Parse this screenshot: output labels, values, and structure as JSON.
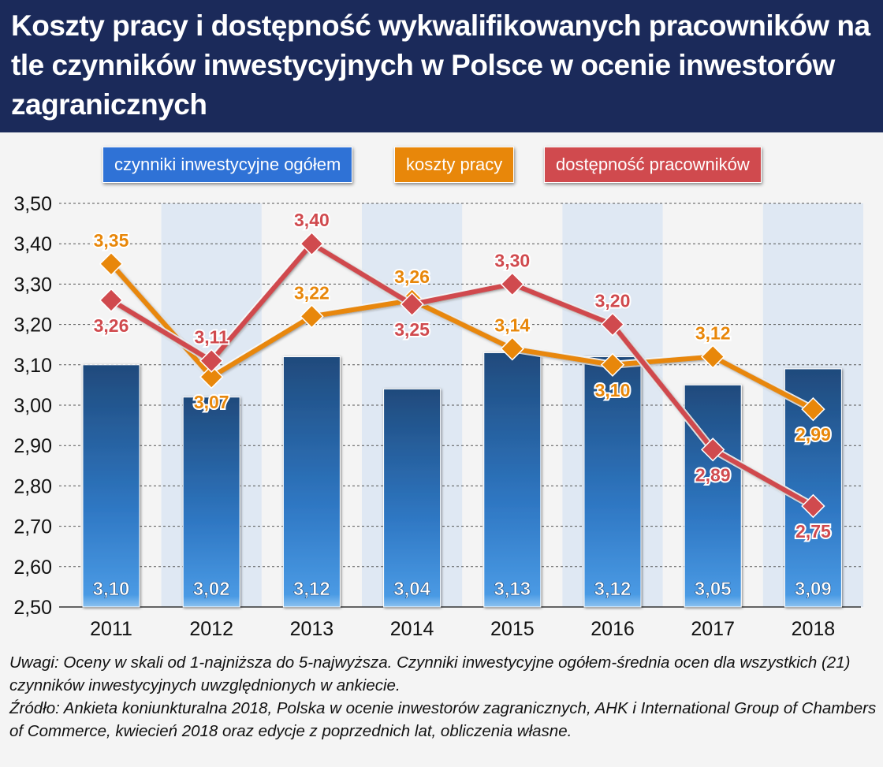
{
  "title": "Koszty pracy i dostępność wykwalifikowanych pracowników na tle czynników inwestycyjnych w Polsce w ocenie inwestorów zagranicznych",
  "notes": [
    "Uwagi: Oceny w skali od 1-najniższa do 5-najwyższa. Czynniki inwestycyjne ogółem-średnia ocen dla wszystkich (21) czynników inwestycyjnych uwzględnionych w ankiecie.",
    "Źródło: Ankieta koniunkturalna 2018, Polska w ocenie inwestorów zagranicznych, AHK i International Group of Chambers of Commerce, kwiecień 2018 oraz edycje z poprzednich lat, obliczenia własne."
  ],
  "chart_data": {
    "type": "bar+line",
    "categories": [
      "2011",
      "2012",
      "2013",
      "2014",
      "2015",
      "2016",
      "2017",
      "2018"
    ],
    "ylim": [
      2.5,
      3.5
    ],
    "yticks": [
      "2,50",
      "2,60",
      "2,70",
      "2,80",
      "2,90",
      "3,00",
      "3,10",
      "3,20",
      "3,30",
      "3,40",
      "3,50"
    ],
    "grid": true,
    "legend_position": "top",
    "series": [
      {
        "name": "czynniki inwestycyjne ogółem",
        "type": "bar",
        "color": "#2f7fd6",
        "values": [
          3.1,
          3.02,
          3.12,
          3.04,
          3.13,
          3.12,
          3.05,
          3.09
        ],
        "labels": [
          "3,10",
          "3,02",
          "3,12",
          "3,04",
          "3,13",
          "3,12",
          "3,05",
          "3,09"
        ]
      },
      {
        "name": "koszty pracy",
        "type": "line",
        "color": "#e8870a",
        "values": [
          3.35,
          3.07,
          3.22,
          3.26,
          3.14,
          3.1,
          3.12,
          2.99
        ],
        "labels": [
          "3,35",
          "3,07",
          "3,22",
          "3,26",
          "3,14",
          "3,10",
          "3,12",
          "2,99"
        ]
      },
      {
        "name": "dostępność pracowników",
        "type": "line",
        "color": "#d04a4e",
        "values": [
          3.26,
          3.11,
          3.4,
          3.25,
          3.3,
          3.2,
          2.89,
          2.75
        ],
        "labels": [
          "3,26",
          "3,11",
          "3,40",
          "3,25",
          "3,30",
          "3,20",
          "2,89",
          "2,75"
        ]
      }
    ]
  }
}
